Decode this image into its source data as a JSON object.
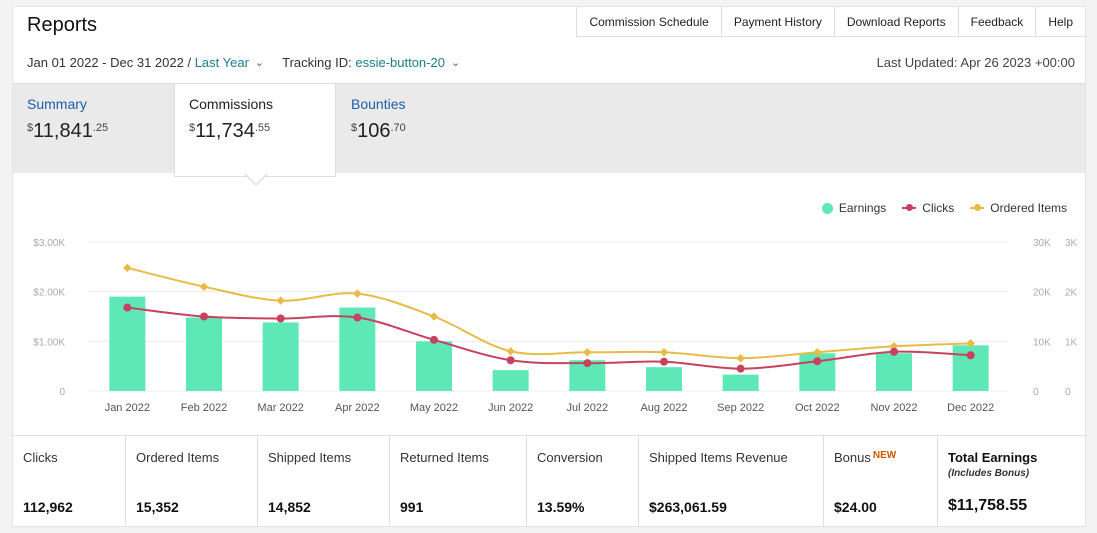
{
  "page": {
    "title": "Reports"
  },
  "top_links": [
    "Commission Schedule",
    "Payment History",
    "Download Reports",
    "Feedback",
    "Help"
  ],
  "filters": {
    "date_range": "Jan 01 2022 - Dec 31 2022 /",
    "period": "Last Year",
    "tracking_label": "Tracking ID:",
    "tracking_id": "essie-button-20",
    "last_updated": "Last Updated: Apr 26 2023 +00:00"
  },
  "tabs": [
    {
      "label": "Summary",
      "dollar": "$",
      "amount": "11,841",
      "cents": ".25"
    },
    {
      "label": "Commissions",
      "dollar": "$",
      "amount": "11,734",
      "cents": ".55"
    },
    {
      "label": "Bounties",
      "dollar": "$",
      "amount": "106",
      "cents": ".70"
    }
  ],
  "legend": {
    "earnings": "Earnings",
    "clicks": "Clicks",
    "ordered": "Ordered Items"
  },
  "colors": {
    "earnings": "#5ee8b7",
    "clicks": "#c8425f",
    "ordered": "#e8bb47",
    "link": "#1f5ea8"
  },
  "chart_data": {
    "type": "bar",
    "categories": [
      "Jan 2022",
      "Feb 2022",
      "Mar 2022",
      "Apr 2022",
      "May 2022",
      "Jun 2022",
      "Jul 2022",
      "Aug 2022",
      "Sep 2022",
      "Oct 2022",
      "Nov 2022",
      "Dec 2022"
    ],
    "series": [
      {
        "name": "Earnings",
        "type": "bar",
        "axis": "left",
        "values": [
          1900,
          1480,
          1380,
          1680,
          1000,
          420,
          620,
          480,
          330,
          760,
          760,
          920
        ]
      },
      {
        "name": "Clicks",
        "type": "line",
        "axis": "right1",
        "values": [
          16800,
          15000,
          14600,
          14800,
          10300,
          6200,
          5600,
          5900,
          4500,
          6000,
          7900,
          7200
        ]
      },
      {
        "name": "Ordered Items",
        "type": "line",
        "axis": "right2",
        "values": [
          2480,
          2100,
          1820,
          1960,
          1500,
          800,
          780,
          780,
          660,
          780,
          900,
          960
        ]
      }
    ],
    "left_ticks": [
      "$3.00K",
      "$2.00K",
      "$1.00K",
      "0"
    ],
    "right1_ticks": [
      "30K",
      "20K",
      "10K",
      "0"
    ],
    "right2_ticks": [
      "3K",
      "2K",
      "1K",
      "0"
    ],
    "ylim_left": [
      0,
      3000
    ],
    "ylim_right1": [
      0,
      30000
    ],
    "ylim_right2": [
      0,
      3000
    ],
    "grid": true,
    "legend_position": "top-right"
  },
  "stats": [
    {
      "label": "Clicks",
      "value": "112,962"
    },
    {
      "label": "Ordered Items",
      "value": "15,352"
    },
    {
      "label": "Shipped Items",
      "value": "14,852"
    },
    {
      "label": "Returned Items",
      "value": "991"
    },
    {
      "label": "Conversion",
      "value": "13.59%"
    },
    {
      "label": "Shipped Items Revenue",
      "value": "$263,061.59"
    },
    {
      "label": "Bonus",
      "badge": "NEW",
      "value": "$24.00"
    },
    {
      "label": "Total Earnings",
      "sub": "(Includes Bonus)",
      "value": "$11,758.55"
    }
  ]
}
